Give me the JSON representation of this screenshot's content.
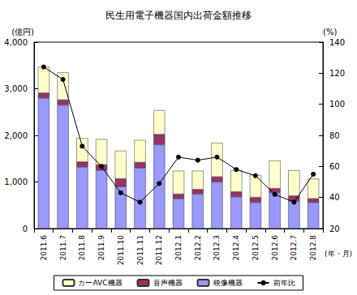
{
  "chart_data": {
    "type": "bar",
    "title": "民生用電子機器国内出荷金額推移",
    "stacked": true,
    "grid": false,
    "legend": "bottom",
    "x_label": "(年・月)",
    "y_label": "(億円)",
    "y2_label": "(%)",
    "categories": [
      "2011.6",
      "2011.7",
      "2011.8",
      "2011.9",
      "2011.10",
      "2011.11",
      "2011.12",
      "2012.1",
      "2012.2",
      "2012.3",
      "2012.4",
      "2012.5",
      "2012.6",
      "2012.7",
      "2012.8"
    ],
    "ylim": [
      0,
      4000
    ],
    "yticks": [
      0,
      {
        "value": 1000,
        "label": "1,000"
      },
      {
        "value": 2000,
        "label": "2,000"
      },
      {
        "value": 3000,
        "label": "3,000"
      },
      {
        "value": 4000,
        "label": "4,000"
      }
    ],
    "y2lim": [
      20,
      140
    ],
    "y2ticks": [
      20,
      40,
      60,
      80,
      100,
      120,
      140
    ],
    "series": [
      {
        "name": "映像機器",
        "type": "bar",
        "color": "#9999ff",
        "values": [
          2800,
          2650,
          1320,
          1250,
          900,
          1300,
          1800,
          640,
          740,
          1000,
          680,
          560,
          770,
          590,
          560
        ]
      },
      {
        "name": "音声機器",
        "type": "bar",
        "color": "#993366",
        "values": [
          110,
          110,
          110,
          120,
          170,
          120,
          220,
          100,
          100,
          110,
          110,
          110,
          90,
          110,
          80
        ]
      },
      {
        "name": "カーAVC機器",
        "type": "bar",
        "color": "#ffffcc",
        "values": [
          560,
          590,
          510,
          550,
          600,
          480,
          520,
          500,
          400,
          730,
          460,
          480,
          600,
          550,
          430
        ]
      },
      {
        "name": "前年比",
        "type": "line",
        "axis": "y2",
        "color": "#000000",
        "marker": "circle",
        "line_style": "solid",
        "values": [
          124,
          116,
          73,
          60,
          43,
          37,
          49,
          66,
          64,
          66,
          58,
          54,
          42,
          37,
          55
        ]
      }
    ]
  }
}
